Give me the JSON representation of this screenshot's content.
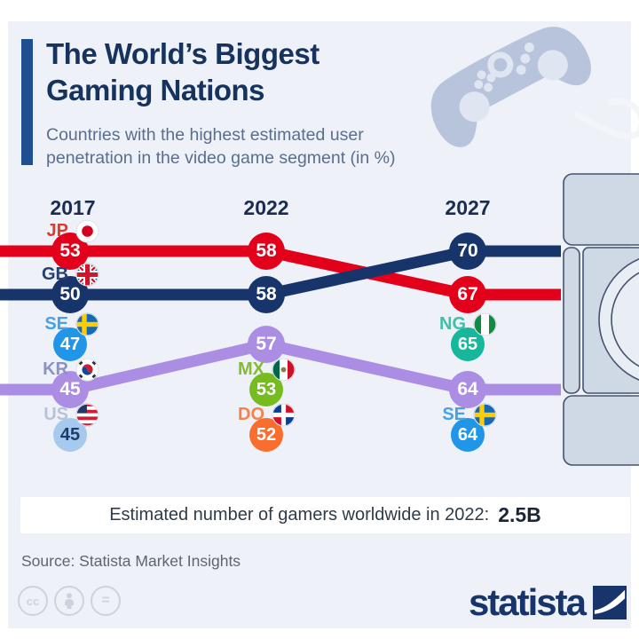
{
  "page": {
    "title_line1": "The World’s Biggest",
    "title_line2": "Gaming Nations",
    "subtitle_line1": "Countries with the highest estimated user",
    "subtitle_line2": "penetration in the video game segment (in %)",
    "banner_label": "Estimated number of gamers worldwide in 2022:",
    "banner_value": "2.5B",
    "source": "Source: Statista Market Insights",
    "brand": "statista",
    "cc_equals": "=",
    "cc_label": "cc"
  },
  "colors": {
    "background": "#eef1f7",
    "accent_bar": "#1d4f91",
    "title": "#16335e",
    "subtitle": "#5a6e8e",
    "red": "#e2001a",
    "navy": "#17356b",
    "blue": "#2196e8",
    "pale_blue": "#a6c9ee",
    "purple": "#ab8ee4",
    "green": "#76bc21",
    "orange": "#f96e2e",
    "teal": "#17b79b"
  },
  "chart_data": {
    "type": "line",
    "subtype": "bump-chart",
    "title": "Countries with the highest estimated user penetration in the video game segment (in %)",
    "years": [
      "2017",
      "2022",
      "2027"
    ],
    "legend_position": "inline",
    "grid": false,
    "series": [
      {
        "name": "Japan",
        "code": "JP",
        "flag": "jp",
        "color": "#e2001a",
        "label_color": "#e0392e",
        "values": [
          53,
          58,
          67
        ],
        "ranks": [
          1,
          1,
          2
        ]
      },
      {
        "name": "United Kingdom",
        "code": "GB",
        "flag": "gb",
        "color": "#17356b",
        "label_color": "#27406f",
        "values": [
          50,
          58,
          70
        ],
        "ranks": [
          2,
          2,
          1
        ]
      },
      {
        "name": "South Korea",
        "code": "KR",
        "flag": "kr",
        "color": "#ab8ee4",
        "label_color": "#8d92c4",
        "values": [
          45,
          57,
          64
        ],
        "ranks": [
          4,
          3,
          4
        ]
      }
    ],
    "points": [
      {
        "name": "Sweden",
        "code": "SE",
        "flag": "se",
        "year": "2017",
        "value": 47,
        "rank": 3,
        "color": "#2196e8",
        "label_color": "#4aa0e8",
        "value_color": "#ffffff"
      },
      {
        "name": "United States",
        "code": "US",
        "flag": "us",
        "year": "2017",
        "value": 45,
        "rank": 5,
        "color": "#a6c9ee",
        "label_color": "#b6c4da",
        "value_color": "#1d3a6d"
      },
      {
        "name": "Mexico",
        "code": "MX",
        "flag": "mx",
        "year": "2022",
        "value": 53,
        "rank": 4,
        "color": "#76bc21",
        "label_color": "#84bb33",
        "value_color": "#ffffff"
      },
      {
        "name": "Dominican Republic",
        "code": "DO",
        "flag": "do",
        "year": "2022",
        "value": 52,
        "rank": 5,
        "color": "#f96e2e",
        "label_color": "#f5824d",
        "value_color": "#ffffff"
      },
      {
        "name": "Nigeria",
        "code": "NG",
        "flag": "ng",
        "year": "2027",
        "value": 65,
        "rank": 3,
        "color": "#17b79b",
        "label_color": "#3ec0a7",
        "value_color": "#ffffff"
      },
      {
        "name": "Sweden",
        "code": "SE",
        "flag": "se",
        "year": "2027",
        "value": 64,
        "rank": 5,
        "color": "#2196e8",
        "label_color": "#4aa0e8",
        "value_color": "#ffffff"
      }
    ],
    "footnote": {
      "label": "Estimated number of gamers worldwide in 2022:",
      "value": "2.5B"
    }
  }
}
